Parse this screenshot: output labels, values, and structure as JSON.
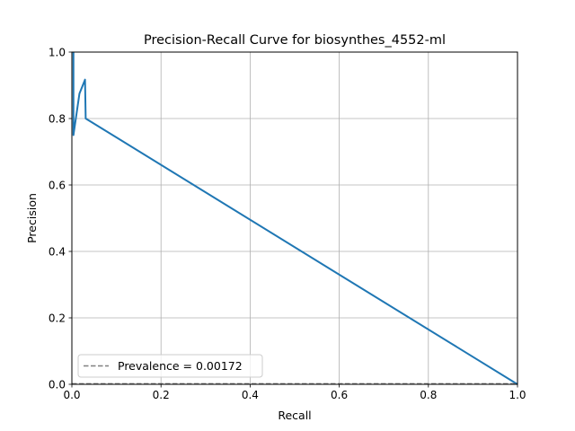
{
  "chart_data": {
    "type": "line",
    "title": "Precision-Recall Curve for biosynthes_4552-ml",
    "xlabel": "Recall",
    "ylabel": "Precision",
    "xlim": [
      0.0,
      1.0
    ],
    "ylim": [
      0.0,
      1.0
    ],
    "xticks": [
      "0.0",
      "0.2",
      "0.4",
      "0.6",
      "0.8",
      "1.0"
    ],
    "yticks": [
      "0.0",
      "0.2",
      "0.4",
      "0.6",
      "0.8",
      "1.0"
    ],
    "grid": true,
    "legend_position": "lower-left",
    "series": [
      {
        "color": "#1f77b4",
        "style": "solid",
        "points": [
          [
            0.0035,
            1.0
          ],
          [
            0.0035,
            0.75
          ],
          [
            0.017,
            0.875
          ],
          [
            0.0295,
            0.917
          ],
          [
            0.031,
            0.8
          ],
          [
            1.0,
            0.0
          ]
        ]
      },
      {
        "name": "Prevalence = 0.00172",
        "color": "#808080",
        "style": "dashed",
        "points": [
          [
            0.0,
            0.00172
          ],
          [
            1.0,
            0.00172
          ]
        ]
      }
    ],
    "legend": [
      {
        "label": "Prevalence = 0.00172",
        "color": "#808080",
        "style": "dashed"
      }
    ]
  }
}
